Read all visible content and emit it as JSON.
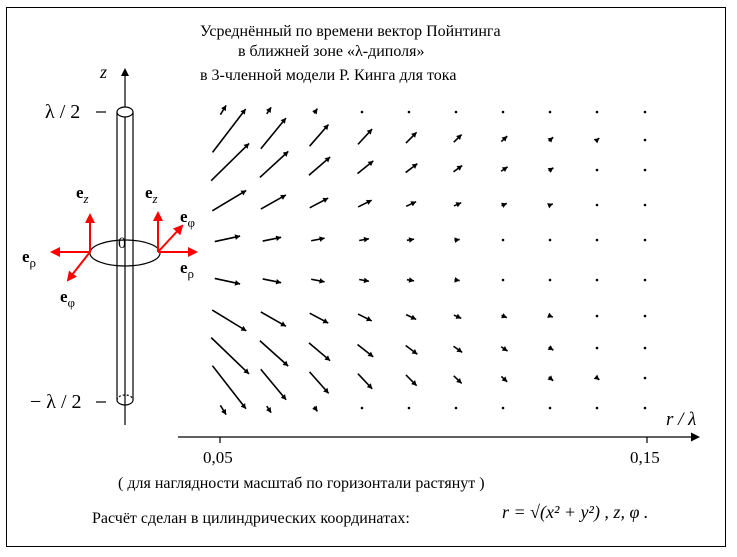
{
  "title": {
    "line1": "Усреднённый по времени вектор Пойнтинга",
    "line2": "в  ближней  зоне  «λ-диполя»",
    "line3": "в     3-членной  модели  Р. Кинга  для  тока"
  },
  "axes": {
    "z_label": "z",
    "r_label": "r / λ",
    "top_label": "λ / 2",
    "bottom_label": "− λ / 2",
    "origin_label": "0",
    "x_tick_1": "0,05",
    "x_tick_2": "0,15"
  },
  "basis": {
    "e_z": "e",
    "e_z_sub": "z",
    "e_rho": "e",
    "e_rho_sub": "ρ",
    "e_phi": "e",
    "e_phi_sub": "φ"
  },
  "footer": {
    "note": "( для наглядности масштаб по горизонтали  растянут )",
    "calc": "Расчёт сделан в цилиндрических координатах:",
    "formula": "r = √(x² + y²) ,  z,  φ ."
  },
  "colors": {
    "vectors": "#000000",
    "basis_arrows": "#ff0000"
  }
}
